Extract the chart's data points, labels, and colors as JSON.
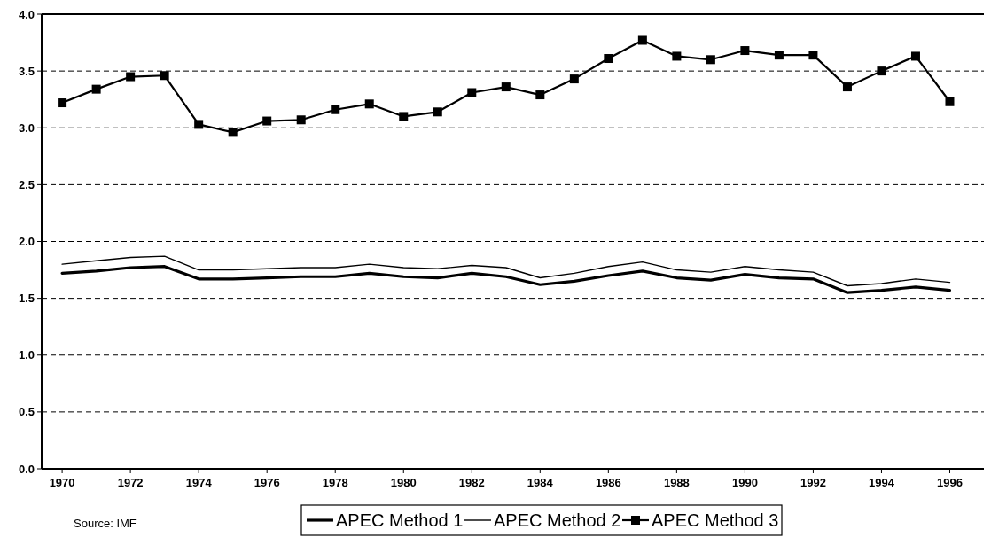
{
  "chart_data": {
    "type": "line",
    "x": [
      1970,
      1971,
      1972,
      1973,
      1974,
      1975,
      1976,
      1977,
      1978,
      1979,
      1980,
      1981,
      1982,
      1983,
      1984,
      1985,
      1986,
      1987,
      1988,
      1989,
      1990,
      1991,
      1992,
      1993,
      1994,
      1995,
      1996
    ],
    "xlim": [
      1969.4,
      1997
    ],
    "xticks": [
      1970,
      1972,
      1974,
      1976,
      1978,
      1980,
      1982,
      1984,
      1986,
      1988,
      1990,
      1992,
      1994,
      1996
    ],
    "ylim": [
      0,
      4
    ],
    "yticks": [
      {
        "value": 0,
        "label": "0.0"
      },
      {
        "value": 0.5,
        "label": "0.5"
      },
      {
        "value": 1,
        "label": "1.0"
      },
      {
        "value": 1.5,
        "label": "1.5"
      },
      {
        "value": 2,
        "label": "2.0"
      },
      {
        "value": 2.5,
        "label": "2.5"
      },
      {
        "value": 3,
        "label": "3.0"
      },
      {
        "value": 3.5,
        "label": "3.5"
      },
      {
        "value": 4,
        "label": "4.0"
      }
    ],
    "grid": "y",
    "legend": "bottom",
    "line_style": "solid",
    "annotations": [
      "Source: IMF"
    ],
    "series": [
      {
        "name": "APEC Method 1",
        "color": "#000000",
        "marker": "none",
        "values": [
          1.72,
          1.74,
          1.77,
          1.78,
          1.67,
          1.67,
          1.68,
          1.69,
          1.69,
          1.72,
          1.69,
          1.68,
          1.72,
          1.69,
          1.62,
          1.65,
          1.7,
          1.74,
          1.68,
          1.66,
          1.71,
          1.68,
          1.67,
          1.55,
          1.57,
          1.6,
          1.57
        ]
      },
      {
        "name": "APEC Method 2",
        "color": "#000000",
        "marker": "none",
        "values": [
          1.8,
          1.83,
          1.86,
          1.87,
          1.75,
          1.75,
          1.76,
          1.77,
          1.77,
          1.8,
          1.77,
          1.76,
          1.79,
          1.77,
          1.68,
          1.72,
          1.78,
          1.82,
          1.75,
          1.73,
          1.78,
          1.75,
          1.73,
          1.61,
          1.63,
          1.67,
          1.64
        ]
      },
      {
        "name": "APEC Method 3",
        "color": "#000000",
        "marker": "square",
        "values": [
          3.22,
          3.34,
          3.45,
          3.46,
          3.03,
          2.96,
          3.06,
          3.07,
          3.16,
          3.21,
          3.1,
          3.14,
          3.31,
          3.36,
          3.29,
          3.43,
          3.61,
          3.77,
          3.63,
          3.6,
          3.68,
          3.64,
          3.64,
          3.36,
          3.5,
          3.63,
          3.23
        ]
      }
    ]
  }
}
